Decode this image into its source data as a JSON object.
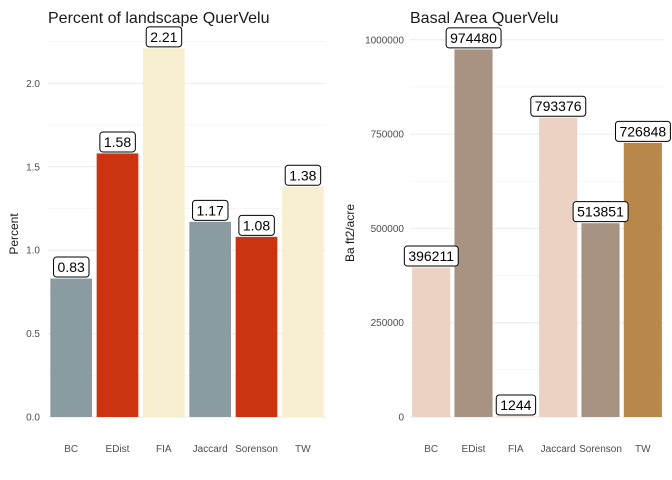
{
  "chart_data": [
    {
      "type": "bar",
      "title": "Percent of landscape  QuerVelu",
      "xlabel": "",
      "ylabel": "Percent",
      "categories": [
        "BC",
        "EDist",
        "FIA",
        "Jaccard",
        "Sorenson",
        "TW"
      ],
      "values": [
        0.83,
        1.58,
        2.21,
        1.17,
        1.08,
        1.38
      ],
      "value_labels": [
        "0.83",
        "1.58",
        "2.21",
        "1.17",
        "1.08",
        "1.38"
      ],
      "colors": [
        "#8a9ca2",
        "#cc3311",
        "#f8eed0",
        "#8a9ca2",
        "#cc3311",
        "#f8eed0"
      ],
      "yticks": [
        0,
        0.5,
        1.0,
        1.5,
        2.0
      ],
      "ytick_labels": [
        "0.0",
        "0.5",
        "1.0",
        "1.5",
        "2.0"
      ],
      "ylim": [
        0,
        2.32
      ],
      "grid": true,
      "legend": "none"
    },
    {
      "type": "bar",
      "title": "Basal Area  QuerVelu",
      "xlabel": "",
      "ylabel": "Ba ft2/acre",
      "categories": [
        "BC",
        "EDist",
        "FIA",
        "Jaccard",
        "Sorenson",
        "TW"
      ],
      "values": [
        396211,
        974480,
        1244,
        793376,
        513851,
        726848
      ],
      "value_labels": [
        "396211",
        "974480",
        "1244",
        "793376",
        "513851",
        "726848"
      ],
      "colors": [
        "#ebd2c2",
        "#a89282",
        "#ebd2c2",
        "#ebd2c2",
        "#a89282",
        "#b8874a"
      ],
      "yticks": [
        0,
        250000,
        500000,
        750000,
        1000000
      ],
      "ytick_labels": [
        "0",
        "250000",
        "500000",
        "750000",
        "1000000"
      ],
      "ylim": [
        0,
        1026000
      ],
      "grid": true,
      "legend": "none"
    }
  ]
}
